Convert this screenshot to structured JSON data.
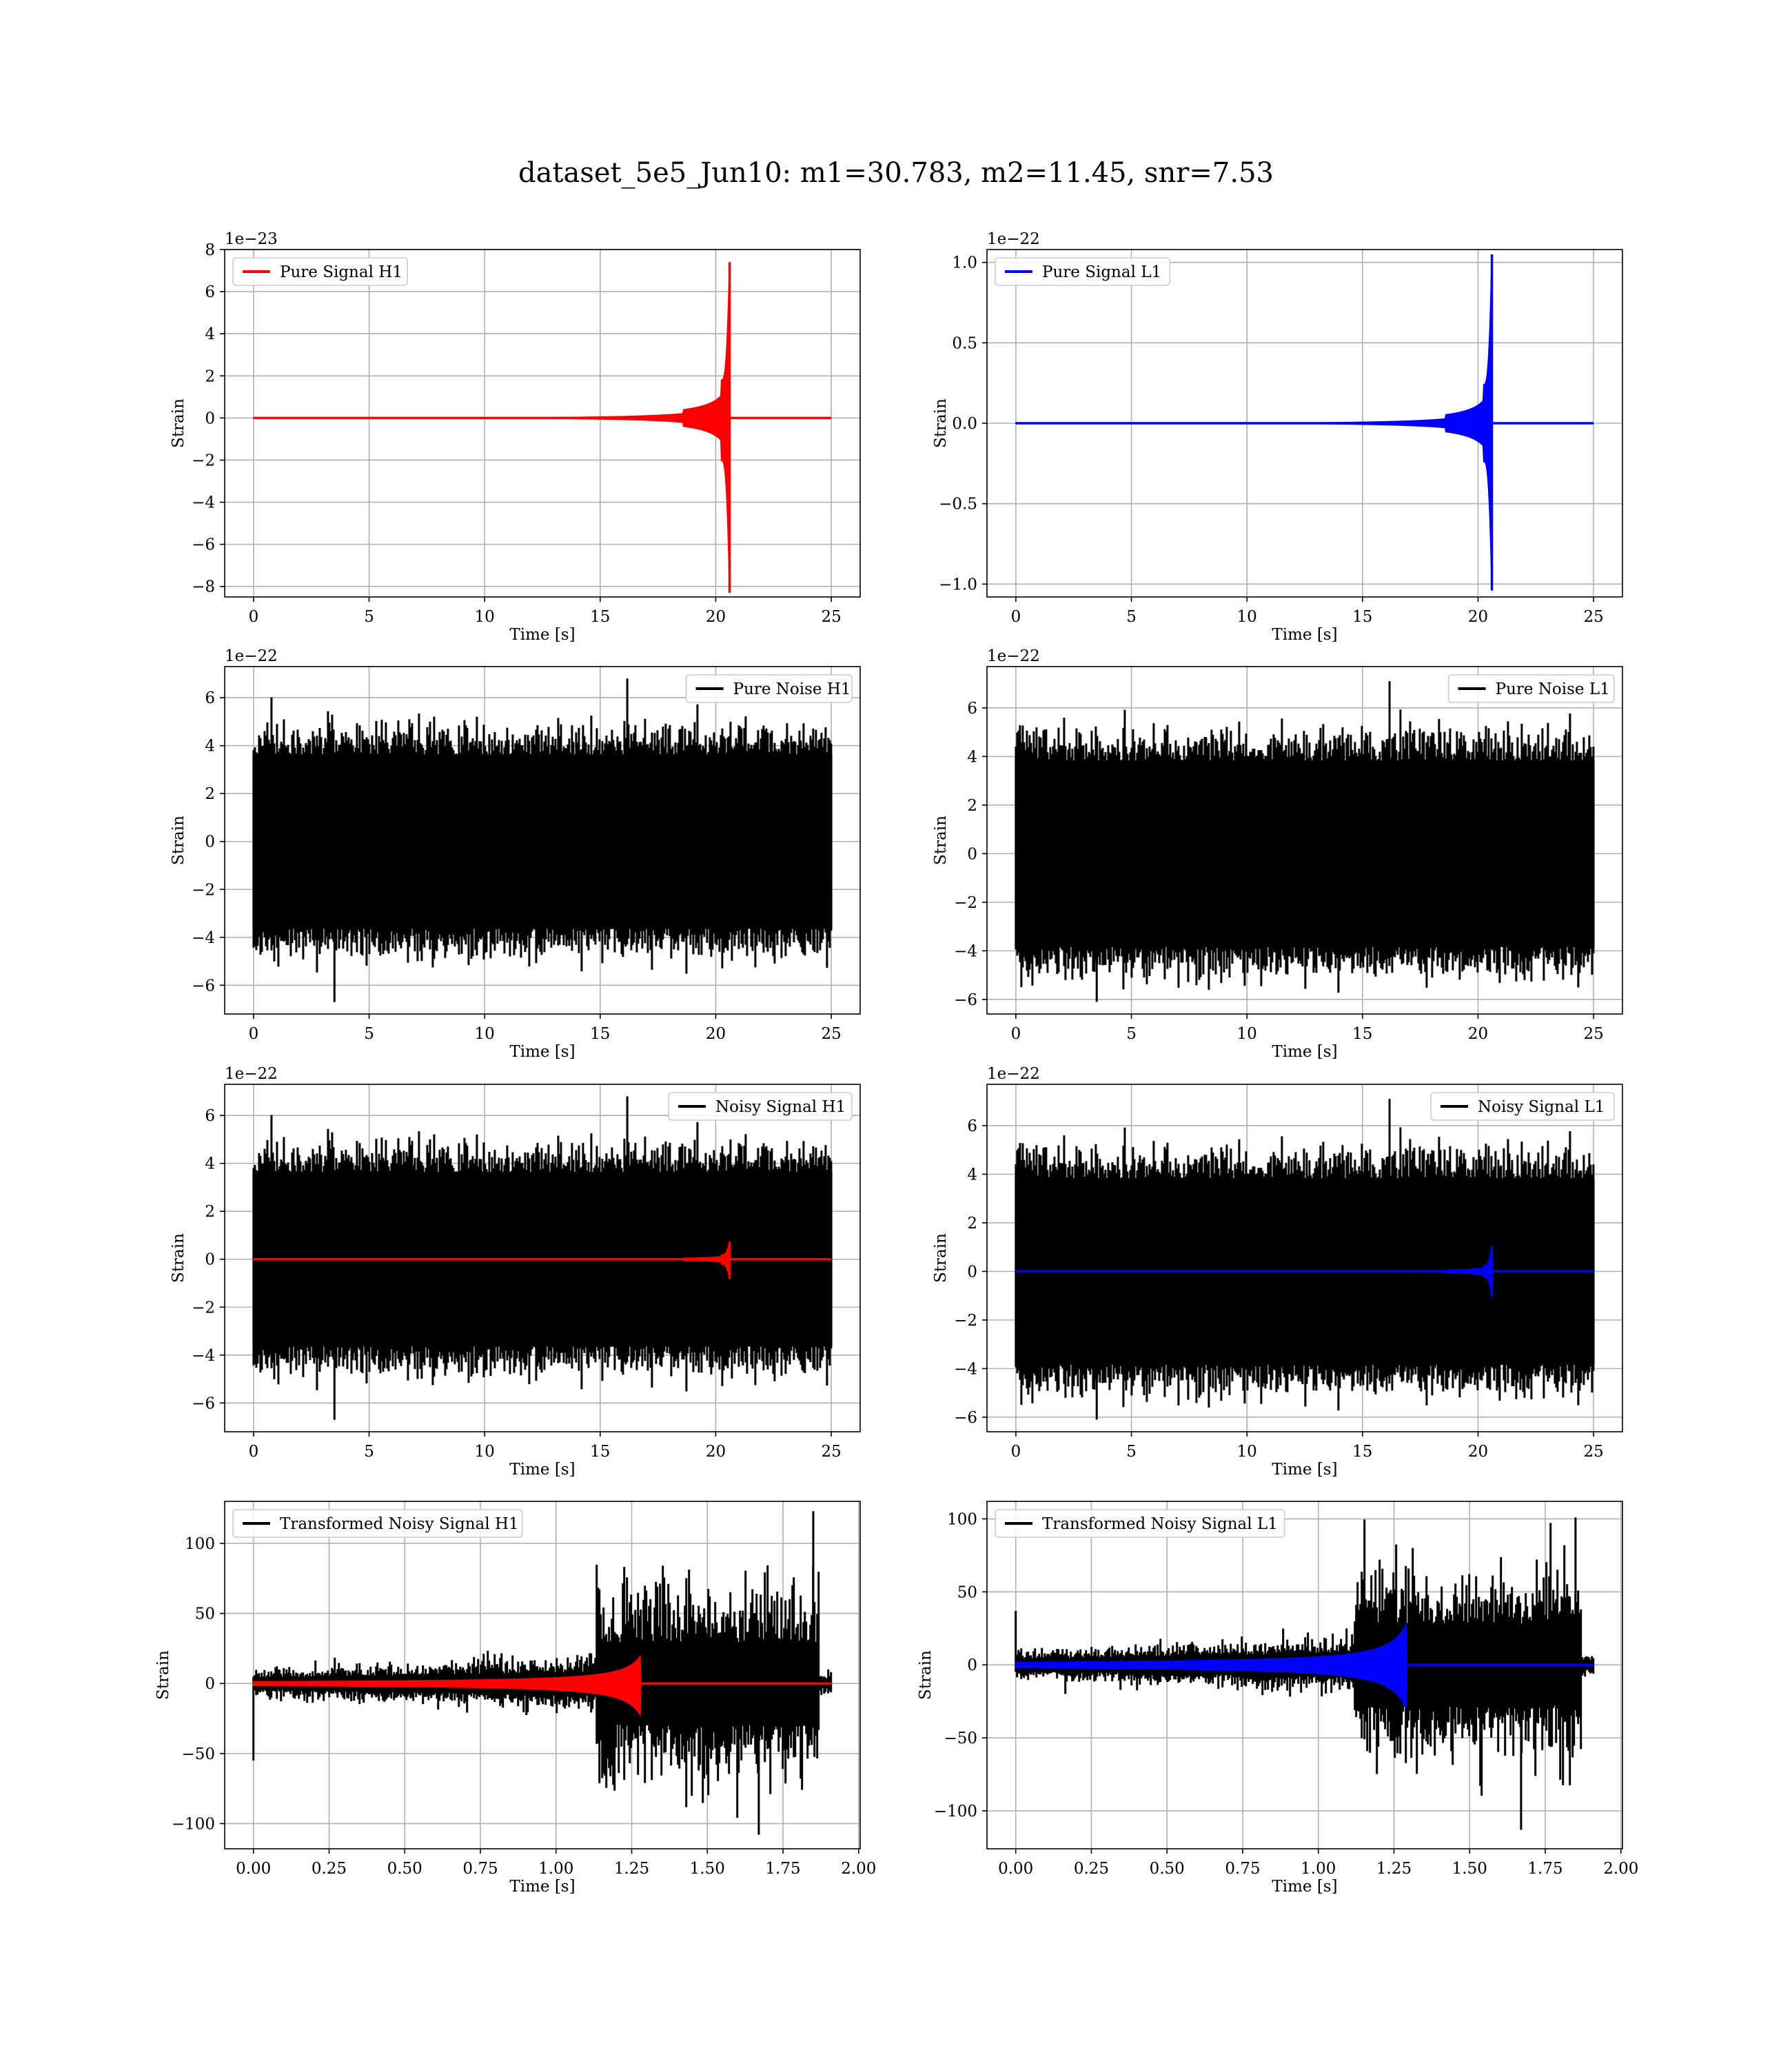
{
  "figure": {
    "title": "dataset_5e5_Jun10: m1=30.783, m2=11.45, snr=7.53"
  },
  "colors": {
    "h1_signal": "#ff0000",
    "l1_signal": "#0000ff",
    "noise": "#000000",
    "grid": "#b0b0b0"
  },
  "chart_data": [
    {
      "type": "line",
      "panel": "pure-signal-h1",
      "xlabel": "Time [s]",
      "ylabel": "Strain",
      "offset_text": "1e−23",
      "xlim": [
        -1.25,
        26.25
      ],
      "ylim": [
        -8.5,
        8.0
      ],
      "xticks": [
        0,
        5,
        10,
        15,
        20,
        25
      ],
      "xticklabels": [
        "0",
        "5",
        "10",
        "15",
        "20",
        "25"
      ],
      "yticks": [
        -8,
        -6,
        -4,
        -2,
        0,
        2,
        4,
        6,
        8
      ],
      "yticklabels": [
        "−8",
        "−6",
        "−4",
        "−2",
        "0",
        "2",
        "4",
        "6",
        "8"
      ],
      "grid": true,
      "legend_position": "upper left",
      "series": [
        {
          "name": "Pure Signal H1",
          "kind": "chirp",
          "color": "#ff0000",
          "x_range": [
            0,
            25
          ],
          "merger_time": 20.6,
          "peak_pos": 7.4,
          "peak_neg": -8.3,
          "pre_merger_amplitude": 1.8,
          "legend": true
        }
      ]
    },
    {
      "type": "line",
      "panel": "pure-signal-l1",
      "xlabel": "Time [s]",
      "ylabel": "Strain",
      "offset_text": "1e−22",
      "xlim": [
        -1.25,
        26.25
      ],
      "ylim": [
        -1.08,
        1.08
      ],
      "xticks": [
        0,
        5,
        10,
        15,
        20,
        25
      ],
      "xticklabels": [
        "0",
        "5",
        "10",
        "15",
        "20",
        "25"
      ],
      "yticks": [
        -1.0,
        -0.5,
        0.0,
        0.5,
        1.0
      ],
      "yticklabels": [
        "−1.0",
        "−0.5",
        "0.0",
        "0.5",
        "1.0"
      ],
      "grid": true,
      "legend_position": "upper left",
      "series": [
        {
          "name": "Pure Signal L1",
          "kind": "chirp",
          "color": "#0000ff",
          "x_range": [
            0,
            25
          ],
          "merger_time": 20.6,
          "peak_pos": 1.05,
          "peak_neg": -1.04,
          "pre_merger_amplitude": 0.24,
          "legend": true
        }
      ]
    },
    {
      "type": "line",
      "panel": "pure-noise-h1",
      "xlabel": "Time [s]",
      "ylabel": "Strain",
      "offset_text": "1e−22",
      "xlim": [
        -1.25,
        26.25
      ],
      "ylim": [
        -7.2,
        7.3
      ],
      "xticks": [
        0,
        5,
        10,
        15,
        20,
        25
      ],
      "xticklabels": [
        "0",
        "5",
        "10",
        "15",
        "20",
        "25"
      ],
      "yticks": [
        -6,
        -4,
        -2,
        0,
        2,
        4,
        6
      ],
      "yticklabels": [
        "−6",
        "−4",
        "−2",
        "0",
        "2",
        "4",
        "6"
      ],
      "grid": true,
      "legend_position": "upper right",
      "series": [
        {
          "name": "Pure Noise H1",
          "kind": "noise",
          "color": "#000000",
          "x_range": [
            0,
            25
          ],
          "max": 6.8,
          "min": -6.7,
          "band": 3.6,
          "seed": 11,
          "legend": true
        }
      ]
    },
    {
      "type": "line",
      "panel": "pure-noise-l1",
      "xlabel": "Time [s]",
      "ylabel": "Strain",
      "offset_text": "1e−22",
      "xlim": [
        -1.25,
        26.25
      ],
      "ylim": [
        -6.6,
        7.7
      ],
      "xticks": [
        0,
        5,
        10,
        15,
        20,
        25
      ],
      "xticklabels": [
        "0",
        "5",
        "10",
        "15",
        "20",
        "25"
      ],
      "yticks": [
        -6,
        -4,
        -2,
        0,
        2,
        4,
        6
      ],
      "yticklabels": [
        "−6",
        "−4",
        "−2",
        "0",
        "2",
        "4",
        "6"
      ],
      "grid": true,
      "legend_position": "upper right",
      "series": [
        {
          "name": "Pure Noise L1",
          "kind": "noise",
          "color": "#000000",
          "x_range": [
            0,
            25
          ],
          "max": 7.1,
          "min": -6.1,
          "band": 3.8,
          "seed": 23,
          "legend": true
        }
      ]
    },
    {
      "type": "line",
      "panel": "noisy-signal-h1",
      "xlabel": "Time [s]",
      "ylabel": "Strain",
      "offset_text": "1e−22",
      "xlim": [
        -1.25,
        26.25
      ],
      "ylim": [
        -7.2,
        7.3
      ],
      "xticks": [
        0,
        5,
        10,
        15,
        20,
        25
      ],
      "xticklabels": [
        "0",
        "5",
        "10",
        "15",
        "20",
        "25"
      ],
      "yticks": [
        -6,
        -4,
        -2,
        0,
        2,
        4,
        6
      ],
      "yticklabels": [
        "−6",
        "−4",
        "−2",
        "0",
        "2",
        "4",
        "6"
      ],
      "grid": true,
      "legend_position": "upper right",
      "series": [
        {
          "name": "Noisy Signal H1",
          "kind": "noise",
          "color": "#000000",
          "x_range": [
            0,
            25
          ],
          "max": 6.8,
          "min": -6.7,
          "band": 3.6,
          "seed": 11,
          "legend": true
        },
        {
          "name": "",
          "kind": "chirp",
          "color": "#ff0000",
          "x_range": [
            0,
            25
          ],
          "merger_time": 20.6,
          "peak_pos": 0.74,
          "peak_neg": -0.83,
          "pre_merger_amplitude": 0.18,
          "legend": false
        }
      ]
    },
    {
      "type": "line",
      "panel": "noisy-signal-l1",
      "xlabel": "Time [s]",
      "ylabel": "Strain",
      "offset_text": "1e−22",
      "xlim": [
        -1.25,
        26.25
      ],
      "ylim": [
        -6.6,
        7.7
      ],
      "xticks": [
        0,
        5,
        10,
        15,
        20,
        25
      ],
      "xticklabels": [
        "0",
        "5",
        "10",
        "15",
        "20",
        "25"
      ],
      "yticks": [
        -6,
        -4,
        -2,
        0,
        2,
        4,
        6
      ],
      "yticklabels": [
        "−6",
        "−4",
        "−2",
        "0",
        "2",
        "4",
        "6"
      ],
      "grid": true,
      "legend_position": "upper right",
      "series": [
        {
          "name": "Noisy Signal L1",
          "kind": "noise",
          "color": "#000000",
          "x_range": [
            0,
            25
          ],
          "max": 7.1,
          "min": -6.1,
          "band": 3.8,
          "seed": 23,
          "legend": true
        },
        {
          "name": "",
          "kind": "chirp",
          "color": "#0000ff",
          "x_range": [
            0,
            25
          ],
          "merger_time": 20.6,
          "peak_pos": 1.05,
          "peak_neg": -1.04,
          "pre_merger_amplitude": 0.24,
          "legend": false
        }
      ]
    },
    {
      "type": "line",
      "panel": "transformed-h1",
      "xlabel": "Time [s]",
      "ylabel": "Strain",
      "offset_text": "",
      "xlim": [
        -0.095,
        2.005
      ],
      "ylim": [
        -118,
        130
      ],
      "xticks": [
        0,
        0.25,
        0.5,
        0.75,
        1.0,
        1.25,
        1.5,
        1.75,
        2.0
      ],
      "xticklabels": [
        "0.00",
        "0.25",
        "0.50",
        "0.75",
        "1.00",
        "1.25",
        "1.50",
        "1.75",
        "2.00"
      ],
      "yticks": [
        -100,
        -50,
        0,
        50,
        100
      ],
      "yticklabels": [
        "−100",
        "−50",
        "0",
        "50",
        "100"
      ],
      "grid": true,
      "legend_position": "upper left",
      "series": [
        {
          "name": "Transformed Noisy Signal H1",
          "kind": "tnoise",
          "color": "#000000",
          "x_range": [
            0,
            1.91
          ],
          "step_time": 1.13,
          "end_time": 1.87,
          "max": 123,
          "min": -108,
          "early_band": 6,
          "late_band": 42,
          "start_spike": -55,
          "seed": 5,
          "legend": true
        },
        {
          "name": "",
          "kind": "tchirp",
          "color": "#ff0000",
          "x_range": [
            0,
            1.91
          ],
          "merger_time": 1.28,
          "peak_pos": 20,
          "peak_neg": -23,
          "legend": false
        }
      ]
    },
    {
      "type": "line",
      "panel": "transformed-l1",
      "xlabel": "Time [s]",
      "ylabel": "Strain",
      "offset_text": "",
      "xlim": [
        -0.095,
        2.005
      ],
      "ylim": [
        -126,
        112
      ],
      "xticks": [
        0,
        0.25,
        0.5,
        0.75,
        1.0,
        1.25,
        1.5,
        1.75,
        2.0
      ],
      "xticklabels": [
        "0.00",
        "0.25",
        "0.50",
        "0.75",
        "1.00",
        "1.25",
        "1.50",
        "1.75",
        "2.00"
      ],
      "yticks": [
        -100,
        -50,
        0,
        50,
        100
      ],
      "yticklabels": [
        "−100",
        "−50",
        "0",
        "50",
        "100"
      ],
      "grid": true,
      "legend_position": "upper left",
      "series": [
        {
          "name": "Transformed Noisy Signal L1",
          "kind": "tnoise",
          "color": "#000000",
          "x_range": [
            0,
            1.91
          ],
          "step_time": 1.12,
          "end_time": 1.87,
          "max": 101,
          "min": -113,
          "early_band": 6,
          "late_band": 40,
          "start_spike": 37,
          "seed": 9,
          "legend": true
        },
        {
          "name": "",
          "kind": "tchirp",
          "color": "#0000ff",
          "x_range": [
            0,
            1.91
          ],
          "merger_time": 1.29,
          "peak_pos": 28,
          "peak_neg": -30,
          "legend": false
        }
      ]
    }
  ]
}
